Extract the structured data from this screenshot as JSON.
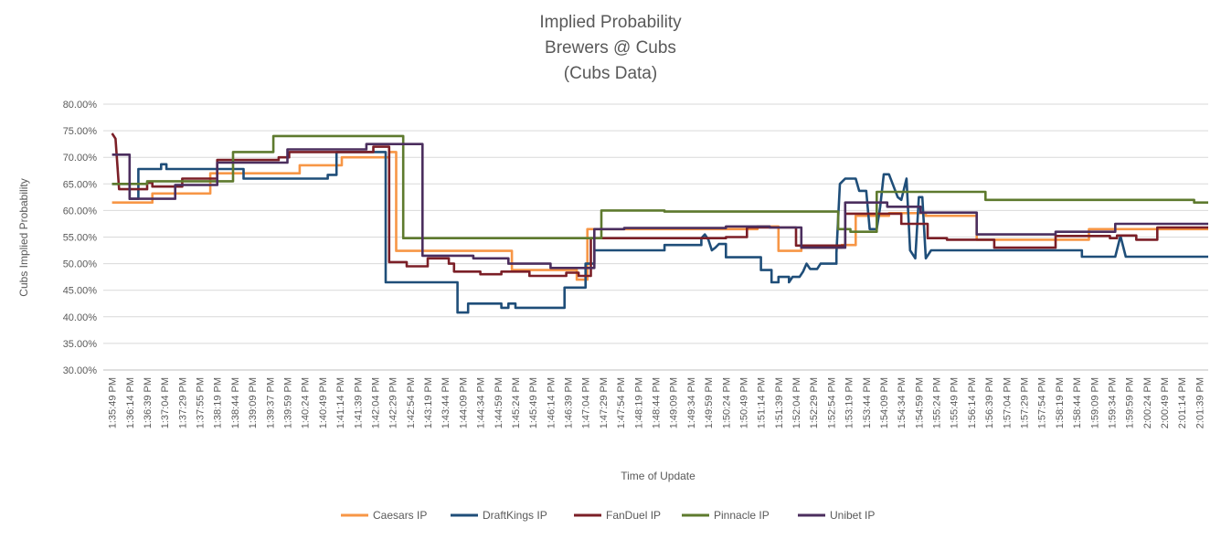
{
  "chart_data": {
    "type": "line",
    "title_lines": [
      "Implied Probability",
      "Brewers @ Cubs",
      "(Cubs Data)"
    ],
    "xlabel": "Time of Update",
    "ylabel": "Cubs Implied Probability",
    "ylim": [
      0.3,
      0.8
    ],
    "ytick_step": 0.05,
    "yticks": [
      "30.00%",
      "35.00%",
      "40.00%",
      "45.00%",
      "50.00%",
      "55.00%",
      "60.00%",
      "65.00%",
      "70.00%",
      "75.00%",
      "80.00%"
    ],
    "grid": "horizontal",
    "legend_position": "bottom",
    "x_labels": [
      "1:35:49 PM",
      "1:36:14 PM",
      "1:36:39 PM",
      "1:37:04 PM",
      "1:37:29 PM",
      "1:37:55 PM",
      "1:38:19 PM",
      "1:38:44 PM",
      "1:39:09 PM",
      "1:39:37 PM",
      "1:39:59 PM",
      "1:40:24 PM",
      "1:40:49 PM",
      "1:41:14 PM",
      "1:41:39 PM",
      "1:42:04 PM",
      "1:42:29 PM",
      "1:42:54 PM",
      "1:43:19 PM",
      "1:43:44 PM",
      "1:44:09 PM",
      "1:44:34 PM",
      "1:44:59 PM",
      "1:45:24 PM",
      "1:45:49 PM",
      "1:46:14 PM",
      "1:46:39 PM",
      "1:47:04 PM",
      "1:47:29 PM",
      "1:47:54 PM",
      "1:48:19 PM",
      "1:48:44 PM",
      "1:49:09 PM",
      "1:49:34 PM",
      "1:49:59 PM",
      "1:50:24 PM",
      "1:50:49 PM",
      "1:51:14 PM",
      "1:51:39 PM",
      "1:52:04 PM",
      "1:52:29 PM",
      "1:52:54 PM",
      "1:53:19 PM",
      "1:53:44 PM",
      "1:54:09 PM",
      "1:54:34 PM",
      "1:54:59 PM",
      "1:55:24 PM",
      "1:55:49 PM",
      "1:56:14 PM",
      "1:56:39 PM",
      "1:57:04 PM",
      "1:57:29 PM",
      "1:57:54 PM",
      "1:58:19 PM",
      "1:58:44 PM",
      "1:59:09 PM",
      "1:59:34 PM",
      "1:59:59 PM",
      "2:00:24 PM",
      "2:00:49 PM",
      "2:01:14 PM",
      "2:01:39 PM"
    ],
    "series": [
      {
        "name": "Caesars IP",
        "color": "#F79646",
        "points": [
          [
            0,
            0.615
          ],
          [
            2.3,
            0.615
          ],
          [
            2.3,
            0.632
          ],
          [
            5.6,
            0.632
          ],
          [
            5.6,
            0.67
          ],
          [
            10.7,
            0.67
          ],
          [
            10.7,
            0.685
          ],
          [
            13.1,
            0.685
          ],
          [
            13.1,
            0.7
          ],
          [
            15.8,
            0.7
          ],
          [
            15.8,
            0.71
          ],
          [
            16.2,
            0.71
          ],
          [
            16.2,
            0.524
          ],
          [
            22.8,
            0.524
          ],
          [
            22.8,
            0.488
          ],
          [
            26.5,
            0.488
          ],
          [
            26.5,
            0.47
          ],
          [
            27.1,
            0.47
          ],
          [
            27.1,
            0.565
          ],
          [
            36.8,
            0.565
          ],
          [
            36.8,
            0.57
          ],
          [
            38.0,
            0.57
          ],
          [
            38.0,
            0.524
          ],
          [
            39.3,
            0.524
          ],
          [
            39.3,
            0.53
          ],
          [
            41.6,
            0.53
          ],
          [
            41.6,
            0.535
          ],
          [
            42.4,
            0.535
          ],
          [
            42.4,
            0.59
          ],
          [
            44.3,
            0.59
          ],
          [
            44.3,
            0.595
          ],
          [
            46.4,
            0.595
          ],
          [
            46.4,
            0.59
          ],
          [
            49.3,
            0.59
          ],
          [
            49.3,
            0.545
          ],
          [
            55.7,
            0.545
          ],
          [
            55.7,
            0.565
          ],
          [
            62.5,
            0.565
          ]
        ]
      },
      {
        "name": "DraftKings IP",
        "color": "#1F4E79",
        "points": [
          [
            0,
            0.65
          ],
          [
            1.0,
            0.65
          ],
          [
            1.0,
            0.622
          ],
          [
            1.5,
            0.622
          ],
          [
            1.5,
            0.678
          ],
          [
            2.8,
            0.678
          ],
          [
            2.8,
            0.687
          ],
          [
            3.1,
            0.687
          ],
          [
            3.1,
            0.678
          ],
          [
            7.5,
            0.678
          ],
          [
            7.5,
            0.66
          ],
          [
            12.3,
            0.66
          ],
          [
            12.3,
            0.667
          ],
          [
            12.8,
            0.667
          ],
          [
            12.8,
            0.71
          ],
          [
            15.6,
            0.71
          ],
          [
            15.6,
            0.465
          ],
          [
            19.7,
            0.465
          ],
          [
            19.7,
            0.408
          ],
          [
            20.3,
            0.408
          ],
          [
            20.3,
            0.425
          ],
          [
            22.2,
            0.425
          ],
          [
            22.2,
            0.417
          ],
          [
            22.6,
            0.417
          ],
          [
            22.6,
            0.425
          ],
          [
            23.0,
            0.425
          ],
          [
            23.0,
            0.417
          ],
          [
            25.8,
            0.417
          ],
          [
            25.8,
            0.455
          ],
          [
            27.0,
            0.455
          ],
          [
            27.0,
            0.5
          ],
          [
            27.5,
            0.5
          ],
          [
            27.5,
            0.525
          ],
          [
            31.5,
            0.525
          ],
          [
            31.5,
            0.535
          ],
          [
            33.6,
            0.535
          ],
          [
            33.6,
            0.548
          ],
          [
            33.8,
            0.555
          ],
          [
            34.0,
            0.545
          ],
          [
            34.2,
            0.525
          ],
          [
            34.4,
            0.53
          ],
          [
            34.6,
            0.537
          ],
          [
            35.0,
            0.537
          ],
          [
            35.0,
            0.512
          ],
          [
            37.0,
            0.512
          ],
          [
            37.0,
            0.488
          ],
          [
            37.6,
            0.488
          ],
          [
            37.6,
            0.465
          ],
          [
            38.0,
            0.465
          ],
          [
            38.0,
            0.475
          ],
          [
            38.6,
            0.475
          ],
          [
            38.6,
            0.465
          ],
          [
            38.8,
            0.475
          ],
          [
            39.2,
            0.475
          ],
          [
            39.4,
            0.485
          ],
          [
            39.6,
            0.5
          ],
          [
            39.8,
            0.49
          ],
          [
            40.2,
            0.49
          ],
          [
            40.4,
            0.5
          ],
          [
            41.3,
            0.5
          ],
          [
            41.3,
            0.52
          ],
          [
            41.5,
            0.65
          ],
          [
            41.8,
            0.66
          ],
          [
            42.4,
            0.66
          ],
          [
            42.6,
            0.637
          ],
          [
            43.0,
            0.637
          ],
          [
            43.2,
            0.565
          ],
          [
            43.6,
            0.565
          ],
          [
            43.8,
            0.607
          ],
          [
            44.0,
            0.668
          ],
          [
            44.3,
            0.668
          ],
          [
            44.8,
            0.625
          ],
          [
            45.0,
            0.62
          ],
          [
            45.3,
            0.66
          ],
          [
            45.5,
            0.525
          ],
          [
            45.8,
            0.51
          ],
          [
            46.0,
            0.625
          ],
          [
            46.2,
            0.625
          ],
          [
            46.4,
            0.51
          ],
          [
            46.7,
            0.525
          ],
          [
            55.3,
            0.525
          ],
          [
            55.3,
            0.513
          ],
          [
            57.2,
            0.513
          ],
          [
            57.5,
            0.552
          ],
          [
            57.8,
            0.513
          ],
          [
            62.5,
            0.513
          ]
        ]
      },
      {
        "name": "FanDuel IP",
        "color": "#7B1F27",
        "points": [
          [
            0,
            0.745
          ],
          [
            0.2,
            0.735
          ],
          [
            0.4,
            0.64
          ],
          [
            2.0,
            0.64
          ],
          [
            2.0,
            0.652
          ],
          [
            2.3,
            0.652
          ],
          [
            2.3,
            0.645
          ],
          [
            4.0,
            0.645
          ],
          [
            4.0,
            0.66
          ],
          [
            6.0,
            0.66
          ],
          [
            6.0,
            0.695
          ],
          [
            9.5,
            0.695
          ],
          [
            9.5,
            0.7
          ],
          [
            10.1,
            0.7
          ],
          [
            10.1,
            0.71
          ],
          [
            14.9,
            0.71
          ],
          [
            14.9,
            0.72
          ],
          [
            15.8,
            0.72
          ],
          [
            15.8,
            0.503
          ],
          [
            16.8,
            0.503
          ],
          [
            16.8,
            0.495
          ],
          [
            18.0,
            0.495
          ],
          [
            18.0,
            0.51
          ],
          [
            19.2,
            0.51
          ],
          [
            19.2,
            0.5
          ],
          [
            19.5,
            0.5
          ],
          [
            19.5,
            0.485
          ],
          [
            21.0,
            0.485
          ],
          [
            21.0,
            0.48
          ],
          [
            22.2,
            0.48
          ],
          [
            22.2,
            0.485
          ],
          [
            23.8,
            0.485
          ],
          [
            23.8,
            0.477
          ],
          [
            25.9,
            0.477
          ],
          [
            25.9,
            0.483
          ],
          [
            26.6,
            0.483
          ],
          [
            26.6,
            0.477
          ],
          [
            27.3,
            0.477
          ],
          [
            27.3,
            0.548
          ],
          [
            35.0,
            0.548
          ],
          [
            35.0,
            0.55
          ],
          [
            36.2,
            0.55
          ],
          [
            36.2,
            0.568
          ],
          [
            39.0,
            0.568
          ],
          [
            39.0,
            0.534
          ],
          [
            41.8,
            0.534
          ],
          [
            41.8,
            0.594
          ],
          [
            45.0,
            0.594
          ],
          [
            45.0,
            0.575
          ],
          [
            46.5,
            0.575
          ],
          [
            46.5,
            0.548
          ],
          [
            47.6,
            0.548
          ],
          [
            47.6,
            0.545
          ],
          [
            50.3,
            0.545
          ],
          [
            50.3,
            0.53
          ],
          [
            53.8,
            0.53
          ],
          [
            53.8,
            0.552
          ],
          [
            56.9,
            0.552
          ],
          [
            56.9,
            0.548
          ],
          [
            57.3,
            0.548
          ],
          [
            57.3,
            0.553
          ],
          [
            58.4,
            0.553
          ],
          [
            58.4,
            0.545
          ],
          [
            59.6,
            0.545
          ],
          [
            59.6,
            0.568
          ],
          [
            62.5,
            0.568
          ]
        ]
      },
      {
        "name": "Pinnacle IP",
        "color": "#5E7A2E",
        "points": [
          [
            0,
            0.65
          ],
          [
            2.0,
            0.65
          ],
          [
            2.0,
            0.655
          ],
          [
            6.9,
            0.655
          ],
          [
            6.9,
            0.71
          ],
          [
            9.2,
            0.71
          ],
          [
            9.2,
            0.74
          ],
          [
            16.6,
            0.74
          ],
          [
            16.6,
            0.548
          ],
          [
            27.9,
            0.548
          ],
          [
            27.9,
            0.6
          ],
          [
            31.5,
            0.6
          ],
          [
            31.5,
            0.598
          ],
          [
            41.4,
            0.598
          ],
          [
            41.4,
            0.565
          ],
          [
            42.1,
            0.565
          ],
          [
            42.1,
            0.56
          ],
          [
            43.6,
            0.56
          ],
          [
            43.6,
            0.635
          ],
          [
            49.8,
            0.635
          ],
          [
            49.8,
            0.62
          ],
          [
            61.7,
            0.62
          ],
          [
            61.7,
            0.615
          ],
          [
            62.5,
            0.615
          ]
        ]
      },
      {
        "name": "Unibet IP",
        "color": "#4B2E5E",
        "points": [
          [
            0,
            0.705
          ],
          [
            1.0,
            0.705
          ],
          [
            1.0,
            0.622
          ],
          [
            3.6,
            0.622
          ],
          [
            3.6,
            0.648
          ],
          [
            6.0,
            0.648
          ],
          [
            6.0,
            0.69
          ],
          [
            10.0,
            0.69
          ],
          [
            10.0,
            0.715
          ],
          [
            14.5,
            0.715
          ],
          [
            14.5,
            0.725
          ],
          [
            17.7,
            0.725
          ],
          [
            17.7,
            0.515
          ],
          [
            20.6,
            0.515
          ],
          [
            20.6,
            0.51
          ],
          [
            22.6,
            0.51
          ],
          [
            22.6,
            0.5
          ],
          [
            25.0,
            0.5
          ],
          [
            25.0,
            0.492
          ],
          [
            27.5,
            0.492
          ],
          [
            27.5,
            0.565
          ],
          [
            29.2,
            0.565
          ],
          [
            29.2,
            0.567
          ],
          [
            35.0,
            0.567
          ],
          [
            35.0,
            0.57
          ],
          [
            37.5,
            0.57
          ],
          [
            37.5,
            0.568
          ],
          [
            39.3,
            0.568
          ],
          [
            39.3,
            0.53
          ],
          [
            41.8,
            0.53
          ],
          [
            41.8,
            0.615
          ],
          [
            44.2,
            0.615
          ],
          [
            44.2,
            0.607
          ],
          [
            46.1,
            0.607
          ],
          [
            46.1,
            0.596
          ],
          [
            49.3,
            0.596
          ],
          [
            49.3,
            0.555
          ],
          [
            53.8,
            0.555
          ],
          [
            53.8,
            0.56
          ],
          [
            57.2,
            0.56
          ],
          [
            57.2,
            0.575
          ],
          [
            62.5,
            0.575
          ]
        ]
      }
    ]
  }
}
